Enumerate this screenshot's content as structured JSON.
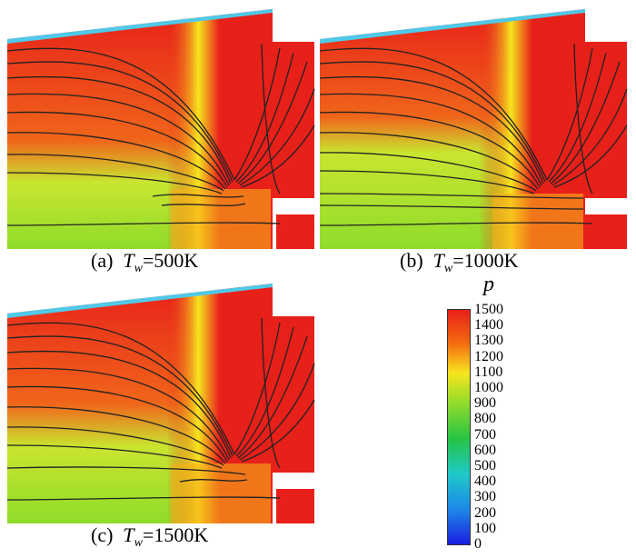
{
  "panels": [
    {
      "id": "a",
      "caption_prefix": "(a)",
      "caption_symbol": "T",
      "caption_sub": "w",
      "caption_value": "=500K"
    },
    {
      "id": "b",
      "caption_prefix": "(b)",
      "caption_symbol": "T",
      "caption_sub": "w",
      "caption_value": "=1000K"
    },
    {
      "id": "c",
      "caption_prefix": "(c)",
      "caption_symbol": "T",
      "caption_sub": "w",
      "caption_value": "=1500K"
    }
  ],
  "colorbar": {
    "title": "p",
    "ticks": [
      "1500",
      "1400",
      "1300",
      "1200",
      "1100",
      "1000",
      "900",
      "800",
      "700",
      "600",
      "500",
      "400",
      "300",
      "200",
      "100",
      "0"
    ],
    "colors": {
      "max": "#e8201a",
      "high": "#f56a10",
      "upper_mid": "#f6e51e",
      "mid": "#8fdc2b",
      "lower_mid": "#26c444",
      "low_mid": "#1fc9c9",
      "low": "#1e88e8",
      "min": "#1a1ee0"
    }
  }
}
